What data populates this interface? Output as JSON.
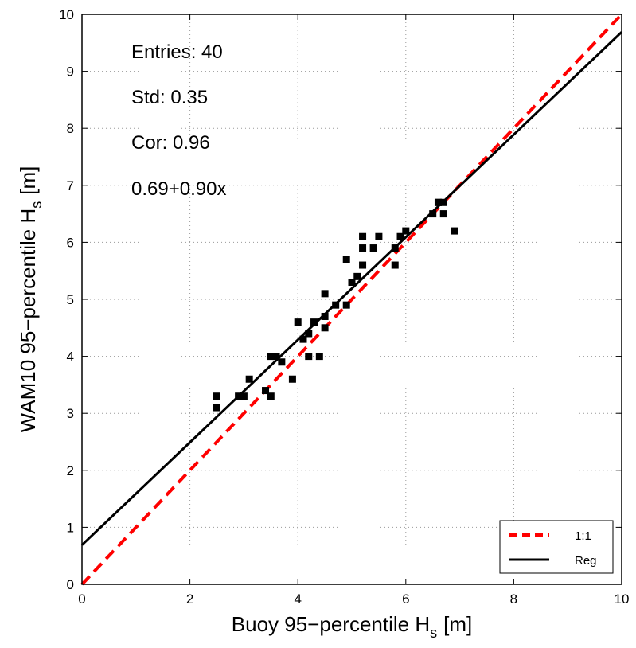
{
  "chart_data": {
    "type": "scatter",
    "xlabel": "Buoy 95−percentile H",
    "xlabel_sub": "s",
    "xlabel_unit": "[m]",
    "ylabel": "WAM10 95−percentile H",
    "ylabel_sub": "s",
    "ylabel_unit": "[m]",
    "xlim": [
      0,
      10
    ],
    "ylim": [
      0,
      10
    ],
    "xticks": [
      "0",
      "2",
      "4",
      "6",
      "8",
      "10"
    ],
    "yticks": [
      "0",
      "1",
      "2",
      "3",
      "4",
      "5",
      "6",
      "7",
      "8",
      "9",
      "10"
    ],
    "grid": true,
    "legend_position": "bottom-right",
    "annotations": [
      "Entries: 40",
      "Std: 0.35",
      "Cor: 0.96",
      "0.69+0.90x"
    ],
    "series": [
      {
        "name": "1:1",
        "kind": "line",
        "style": "dashed",
        "color": "#ff0000",
        "x": [
          0,
          10
        ],
        "y": [
          0,
          10
        ]
      },
      {
        "name": "Reg",
        "kind": "line",
        "style": "solid",
        "color": "#000000",
        "x": [
          0,
          10
        ],
        "y": [
          0.69,
          9.69
        ]
      },
      {
        "kind": "scatter",
        "marker": "square",
        "color": "#000000",
        "points": [
          [
            2.5,
            3.3
          ],
          [
            2.5,
            3.1
          ],
          [
            2.9,
            3.3
          ],
          [
            3.0,
            3.3
          ],
          [
            3.1,
            3.6
          ],
          [
            3.4,
            3.4
          ],
          [
            3.5,
            3.3
          ],
          [
            3.5,
            4.0
          ],
          [
            3.6,
            4.0
          ],
          [
            3.7,
            3.9
          ],
          [
            3.9,
            3.6
          ],
          [
            4.0,
            4.6
          ],
          [
            4.1,
            4.3
          ],
          [
            4.2,
            4.0
          ],
          [
            4.2,
            4.4
          ],
          [
            4.3,
            4.6
          ],
          [
            4.4,
            4.0
          ],
          [
            4.5,
            4.5
          ],
          [
            4.5,
            4.7
          ],
          [
            4.5,
            5.1
          ],
          [
            4.7,
            4.9
          ],
          [
            4.9,
            4.9
          ],
          [
            4.9,
            5.7
          ],
          [
            5.0,
            5.3
          ],
          [
            5.1,
            5.4
          ],
          [
            5.2,
            5.6
          ],
          [
            5.2,
            5.9
          ],
          [
            5.2,
            6.1
          ],
          [
            5.4,
            5.9
          ],
          [
            5.5,
            6.1
          ],
          [
            5.8,
            5.6
          ],
          [
            5.8,
            5.9
          ],
          [
            5.9,
            6.1
          ],
          [
            6.0,
            6.2
          ],
          [
            6.5,
            6.5
          ],
          [
            6.6,
            6.7
          ],
          [
            6.6,
            6.7
          ],
          [
            6.7,
            6.7
          ],
          [
            6.7,
            6.5
          ],
          [
            6.9,
            6.2
          ]
        ]
      }
    ]
  }
}
